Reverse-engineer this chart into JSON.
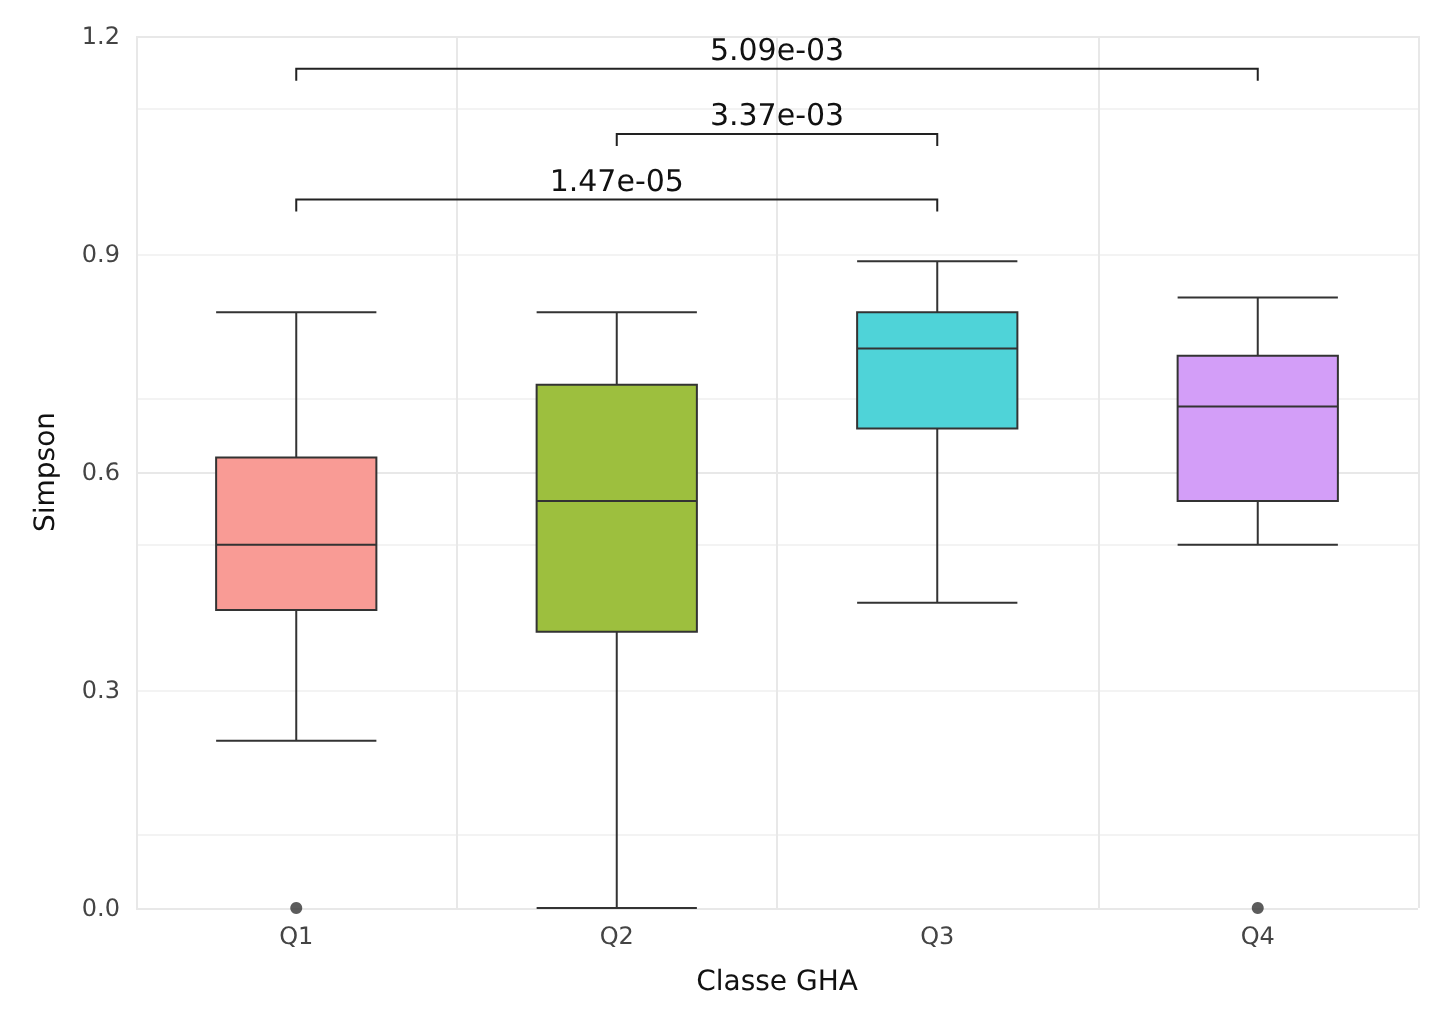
{
  "chart_data": {
    "type": "box",
    "xlabel": "Classe GHA",
    "ylabel": "Simpson",
    "categories": [
      "Q1",
      "Q2",
      "Q3",
      "Q4"
    ],
    "boxes": [
      {
        "low": 0.23,
        "q1": 0.41,
        "median": 0.5,
        "q3": 0.62,
        "high": 0.82,
        "outliers": [
          0
        ]
      },
      {
        "low": 0,
        "q1": 0.38,
        "median": 0.56,
        "q3": 0.72,
        "high": 0.82
      },
      {
        "low": 0.42,
        "q1": 0.66,
        "median": 0.77,
        "q3": 0.82,
        "high": 0.89
      },
      {
        "low": 0.5,
        "q1": 0.56,
        "median": 0.69,
        "q3": 0.76,
        "high": 0.84,
        "outliers": [
          0
        ]
      }
    ],
    "colors": [
      "#f99b95",
      "#9dbf3e",
      "#4fd3d8",
      "#d39ef8"
    ],
    "ylim": [
      0,
      1.2
    ],
    "yticks": [
      {
        "value": 0,
        "label": "0.0"
      },
      {
        "value": 0.3,
        "label": "0.3"
      },
      {
        "value": 0.6,
        "label": "0.6"
      },
      {
        "value": 0.9,
        "label": "0.9"
      },
      {
        "value": 1.2,
        "label": "1.2"
      }
    ],
    "grid": true,
    "annotations": [
      "1.47e-05",
      "3.37e-03",
      "5.09e-03"
    ]
  }
}
